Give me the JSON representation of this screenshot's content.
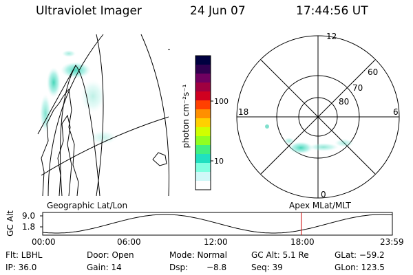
{
  "header": {
    "title": "Ultraviolet Imager",
    "date": "24 Jun 07",
    "time": "17:44:56 UT"
  },
  "colorbar": {
    "label": "photon cm⁻²s⁻¹",
    "ticks": [
      "100",
      "10"
    ],
    "colors": [
      "#000040",
      "#300050",
      "#700060",
      "#a00040",
      "#d00020",
      "#ff4000",
      "#ff9000",
      "#ffd000",
      "#d0ff00",
      "#90ff20",
      "#40f080",
      "#20e0c0",
      "#80ffe0",
      "#d0f8f8",
      "#ffffff"
    ]
  },
  "polar": {
    "mlt_labels": {
      "top": "12",
      "left": "18",
      "right": "6",
      "bottom": "0"
    },
    "lat_labels": [
      "60",
      "70",
      "80"
    ]
  },
  "map_labels": {
    "left": "Geographic Lat/Lon",
    "right": "Apex MLat/MLT"
  },
  "alt_plot": {
    "axis_label": "GC Alt",
    "y_ticks": [
      "9.0",
      "1.8"
    ],
    "x_ticks": [
      "00:00",
      "06:00",
      "12:00",
      "18:00",
      "23:59"
    ],
    "current_marker_color": "#cc0000"
  },
  "info": {
    "filter": "Flt: LBHL",
    "door": "Door: Open",
    "mode_label": "Mode: Normal",
    "gc_alt": "GC Alt: 5.1 Re",
    "glat": "GLat: −59.2",
    "ip": "IP: 36.0",
    "gain": "Gain: 14",
    "dsp_label": "Dsp:",
    "dsp_value": "−8.8",
    "seq": "Seq: 39",
    "glon": "GLon: 123.5"
  }
}
